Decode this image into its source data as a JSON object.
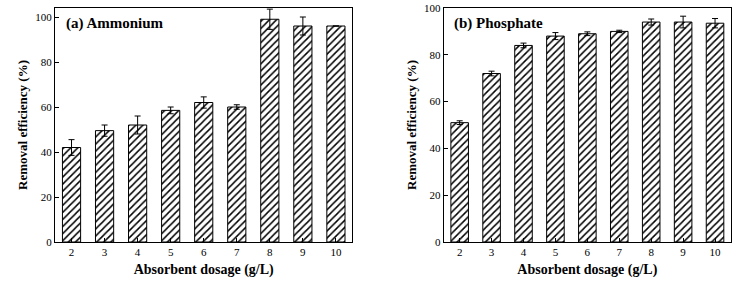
{
  "chart_data": [
    {
      "type": "bar",
      "title": "(a) Ammonium",
      "x_label": "Absorbent dosage (g/L)",
      "y_label": "Removal efficiency (%)",
      "x": [
        2,
        3,
        4,
        5,
        6,
        7,
        8,
        9,
        10
      ],
      "values": [
        42,
        49.5,
        52,
        58.5,
        62,
        60,
        99,
        96,
        96
      ],
      "errors": [
        3.5,
        2.5,
        4,
        1.5,
        2.5,
        1,
        4.5,
        4,
        0
      ],
      "color": "#000000",
      "xlim": [
        1.5,
        10.5
      ],
      "xticks": [
        2,
        3,
        4,
        5,
        6,
        7,
        8,
        9,
        10
      ],
      "ylim": [
        0,
        104
      ],
      "yticks": [
        0,
        20,
        40,
        60,
        80,
        100
      ],
      "grid": false
    },
    {
      "type": "bar",
      "title": "(b) Phosphate",
      "x_label": "Absorbent dosage (g/L)",
      "y_label": "Removal efficiency (%)",
      "x": [
        2,
        3,
        4,
        5,
        6,
        7,
        8,
        9,
        10
      ],
      "values": [
        51,
        72,
        84,
        88,
        89,
        90,
        94,
        94,
        93.5
      ],
      "errors": [
        0.8,
        1,
        1,
        1.5,
        0.8,
        0.5,
        1.3,
        2.5,
        2
      ],
      "color": "#000000",
      "xlim": [
        1.5,
        10.5
      ],
      "xticks": [
        2,
        3,
        4,
        5,
        6,
        7,
        8,
        9,
        10
      ],
      "ylim": [
        0,
        100
      ],
      "yticks": [
        0,
        20,
        40,
        60,
        80,
        100
      ],
      "grid": false
    }
  ]
}
